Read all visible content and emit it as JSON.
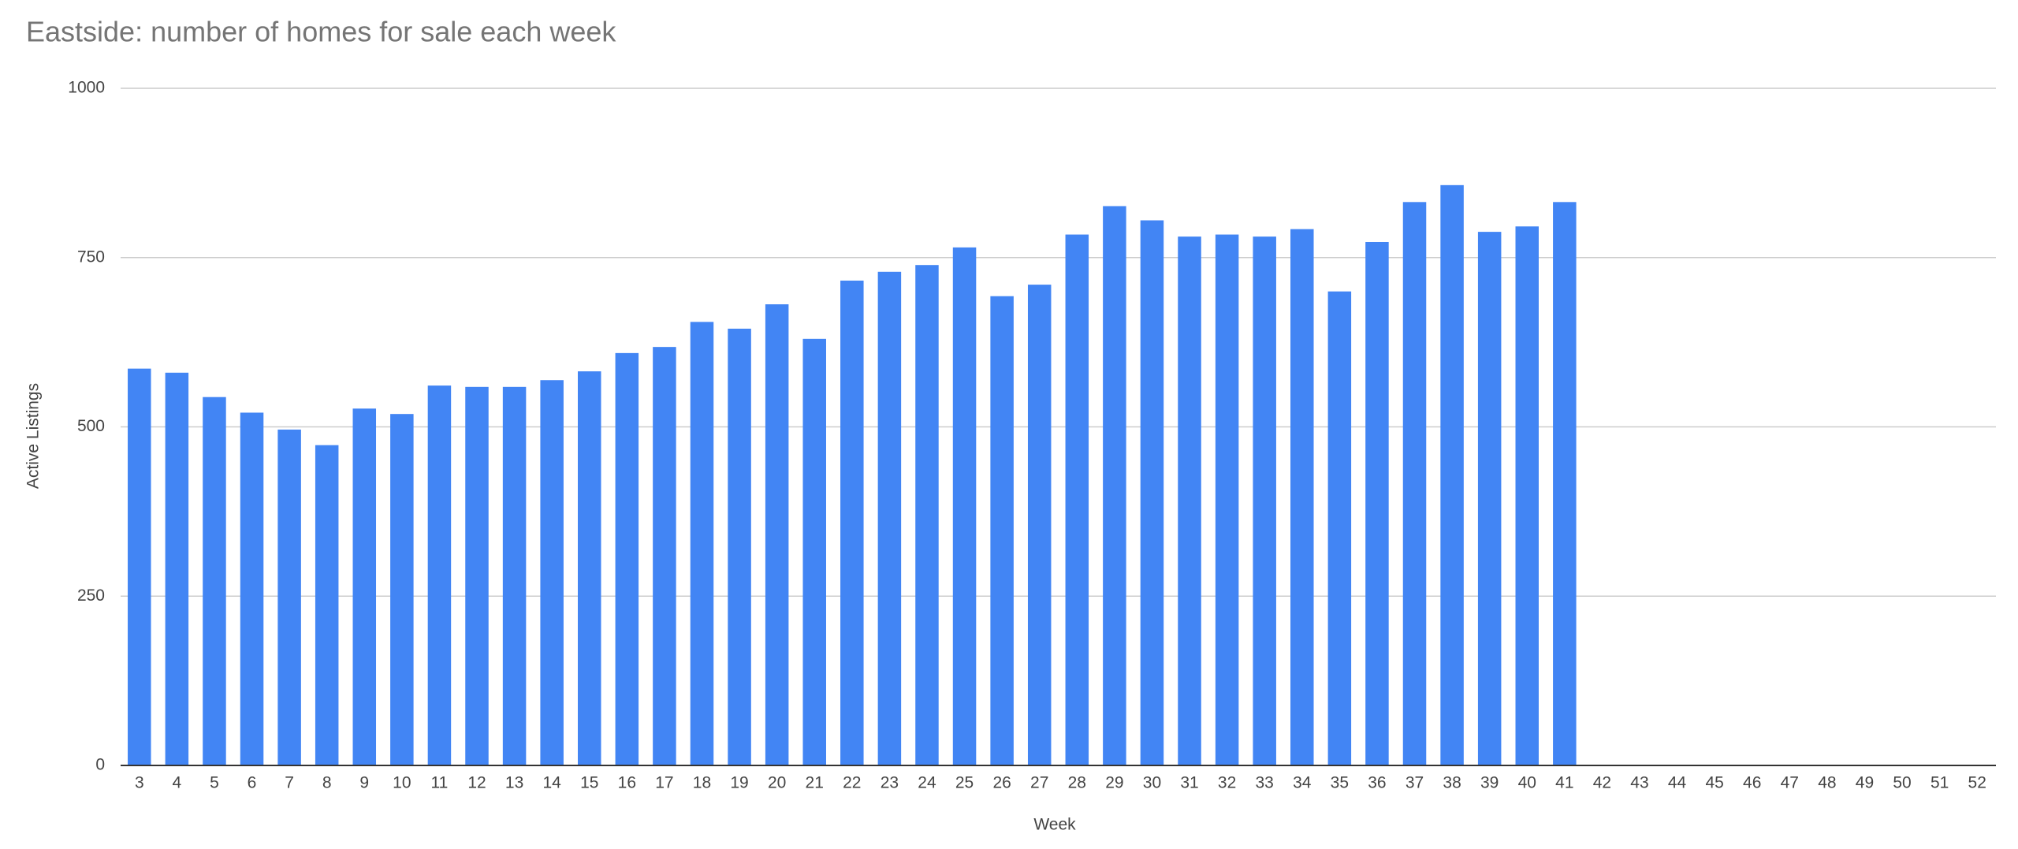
{
  "chart_data": {
    "type": "bar",
    "title": "Eastside: number of homes for sale each week",
    "x_label": "Week",
    "y_label": "Active Listings",
    "categories": [
      3,
      4,
      5,
      6,
      7,
      8,
      9,
      10,
      11,
      12,
      13,
      14,
      15,
      16,
      17,
      18,
      19,
      20,
      21,
      22,
      23,
      24,
      25,
      26,
      27,
      28,
      29,
      30,
      31,
      32,
      33,
      34,
      35,
      36,
      37,
      38,
      39,
      40,
      41,
      42,
      43,
      44,
      45,
      46,
      47,
      48,
      49,
      50,
      51,
      52
    ],
    "values": [
      586,
      580,
      544,
      521,
      496,
      473,
      527,
      519,
      561,
      559,
      559,
      569,
      582,
      609,
      618,
      655,
      645,
      681,
      630,
      716,
      729,
      739,
      765,
      693,
      710,
      784,
      826,
      805,
      781,
      784,
      781,
      792,
      700,
      773,
      832,
      857,
      788,
      796,
      832,
      null,
      null,
      null,
      null,
      null,
      null,
      null,
      null,
      null,
      null,
      null
    ],
    "color": "#4285f4",
    "ylim": [
      0,
      1000
    ],
    "yticks": [
      0,
      250,
      500,
      750,
      1000
    ],
    "grid": true
  }
}
